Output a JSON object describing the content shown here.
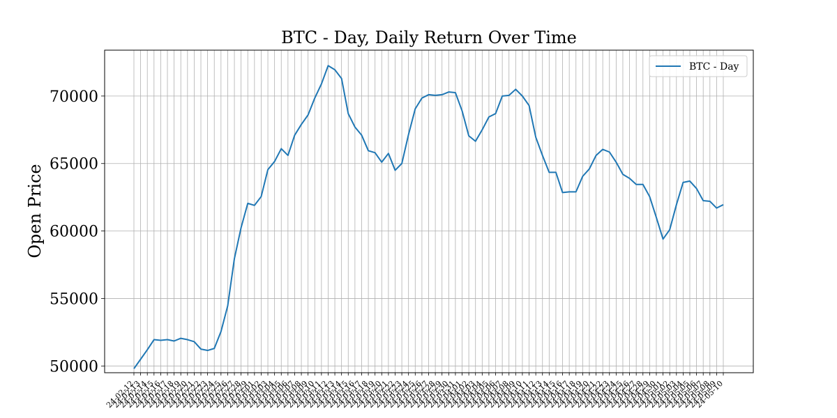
{
  "chart_data": {
    "type": "line",
    "title": "BTC - Day, Daily Return Over Time",
    "xlabel": "",
    "ylabel": "Open Price",
    "ylim": [
      49500,
      73400
    ],
    "yticks": [
      50000,
      55000,
      60000,
      65000,
      70000
    ],
    "grid": true,
    "legend_position": "top-right",
    "categories": [
      "24-02-12",
      "24-02-13",
      "24-02-14",
      "24-02-15",
      "24-02-16",
      "24-02-17",
      "24-02-18",
      "24-02-19",
      "24-02-20",
      "24-02-21",
      "24-02-22",
      "24-02-23",
      "24-02-24",
      "24-02-25",
      "24-02-26",
      "24-02-27",
      "24-02-28",
      "24-02-29",
      "24-03-01",
      "24-03-02",
      "24-03-03",
      "24-03-04",
      "24-03-05",
      "24-03-06",
      "24-03-07",
      "24-03-08",
      "24-03-09",
      "24-03-10",
      "24-03-11",
      "24-03-12",
      "24-03-13",
      "24-03-14",
      "24-03-15",
      "24-03-16",
      "24-03-17",
      "24-03-18",
      "24-03-19",
      "24-03-20",
      "24-03-21",
      "24-03-22",
      "24-03-23",
      "24-03-24",
      "24-03-25",
      "24-03-26",
      "24-03-27",
      "24-03-28",
      "24-03-29",
      "24-03-30",
      "24-03-31",
      "24-04-01",
      "24-04-02",
      "24-04-03",
      "24-04-04",
      "24-04-05",
      "24-04-06",
      "24-04-07",
      "24-04-08",
      "24-04-09",
      "24-04-10",
      "24-04-11",
      "24-04-12",
      "24-04-13",
      "24-04-14",
      "24-04-15",
      "24-04-16",
      "24-04-17",
      "24-04-18",
      "24-04-19",
      "24-04-20",
      "24-04-21",
      "24-04-22",
      "24-04-23",
      "24-04-24",
      "24-04-25",
      "24-04-26",
      "24-04-27",
      "24-04-28",
      "24-04-29",
      "24-04-30",
      "24-05-01",
      "24-05-02",
      "24-05-03",
      "24-05-04",
      "24-05-05",
      "24-05-06",
      "24-05-07",
      "24-05-08",
      "24-05-09",
      "24-05-10"
    ],
    "series": [
      {
        "name": "BTC - Day",
        "color": "#1f77b4",
        "values": [
          49800,
          50500,
          51200,
          51950,
          51900,
          51950,
          51850,
          52050,
          51950,
          51800,
          51250,
          51150,
          51300,
          52550,
          54450,
          57950,
          60250,
          62050,
          61900,
          62550,
          64550,
          65150,
          66100,
          65600,
          67100,
          67900,
          68600,
          69850,
          70900,
          72250,
          71950,
          71300,
          68700,
          67700,
          67100,
          65950,
          65800,
          65100,
          65750,
          64500,
          65000,
          67150,
          69050,
          69850,
          70100,
          70050,
          70100,
          70300,
          70250,
          68900,
          67050,
          66650,
          67500,
          68450,
          68700,
          70000,
          70050,
          70500,
          70000,
          69300,
          66950,
          65600,
          64350,
          64350,
          62850,
          62900,
          62900,
          64050,
          64600,
          65600,
          66050,
          65850,
          65100,
          64200,
          63900,
          63450,
          63450,
          62550,
          61000,
          59400,
          60100,
          61950,
          63600,
          63700,
          63150,
          62250,
          62200,
          61700,
          61950
        ]
      }
    ]
  }
}
